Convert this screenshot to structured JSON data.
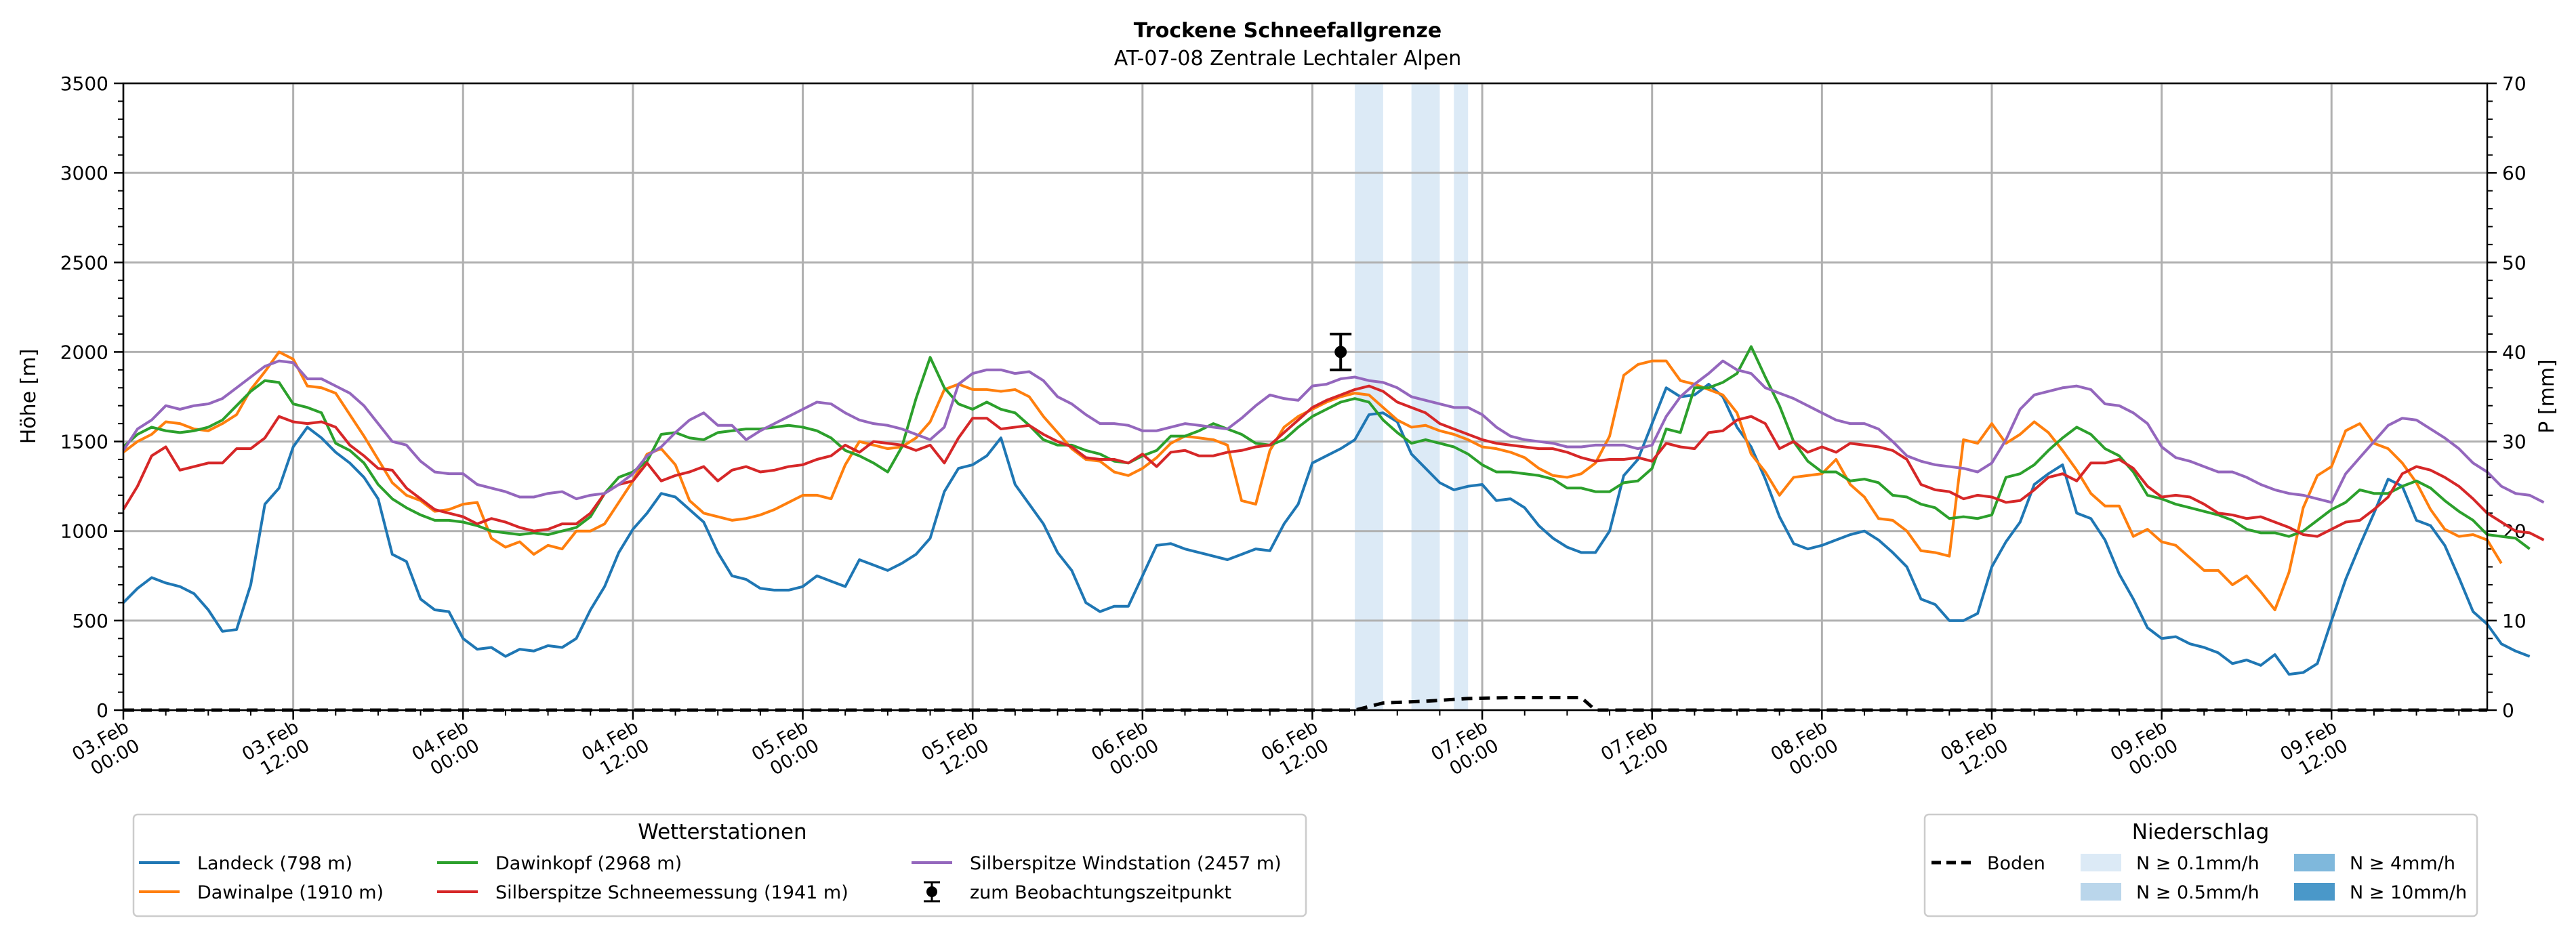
{
  "chart_data": {
    "type": "line",
    "title": "Trockene Schneefallgrenze",
    "subtitle": "AT-07-08 Zentrale Lechtaler Alpen",
    "ylabel": "Höhe [m]",
    "y2label": "P [mm]",
    "ylim": [
      0,
      3500
    ],
    "y2lim": [
      0,
      70
    ],
    "yticks": [
      "0",
      "500",
      "1000",
      "1500",
      "2000",
      "2500",
      "3000",
      "3500"
    ],
    "y2ticks": [
      "0",
      "10",
      "20",
      "30",
      "40",
      "50",
      "60",
      "70"
    ],
    "x_start_hours": 0,
    "x_step_hours": 1,
    "xlim_hours": [
      0,
      167
    ],
    "xticks": [
      {
        "h": 0,
        "l1": "03.Feb",
        "l2": "00:00"
      },
      {
        "h": 12,
        "l1": "03.Feb",
        "l2": "12:00"
      },
      {
        "h": 24,
        "l1": "04.Feb",
        "l2": "00:00"
      },
      {
        "h": 36,
        "l1": "04.Feb",
        "l2": "12:00"
      },
      {
        "h": 48,
        "l1": "05.Feb",
        "l2": "00:00"
      },
      {
        "h": 60,
        "l1": "05.Feb",
        "l2": "12:00"
      },
      {
        "h": 72,
        "l1": "06.Feb",
        "l2": "00:00"
      },
      {
        "h": 84,
        "l1": "06.Feb",
        "l2": "12:00"
      },
      {
        "h": 96,
        "l1": "07.Feb",
        "l2": "00:00"
      },
      {
        "h": 108,
        "l1": "07.Feb",
        "l2": "12:00"
      },
      {
        "h": 120,
        "l1": "08.Feb",
        "l2": "00:00"
      },
      {
        "h": 132,
        "l1": "08.Feb",
        "l2": "12:00"
      },
      {
        "h": 144,
        "l1": "09.Feb",
        "l2": "00:00"
      },
      {
        "h": 156,
        "l1": "09.Feb",
        "l2": "12:00"
      }
    ],
    "series": [
      {
        "name": "Landeck (798 m)",
        "color": "#1f77b4",
        "values": [
          600,
          680,
          740,
          710,
          690,
          650,
          560,
          440,
          450,
          700,
          1150,
          1240,
          1470,
          1580,
          1520,
          1440,
          1380,
          1300,
          1180,
          870,
          830,
          620,
          560,
          550,
          400,
          340,
          350,
          300,
          340,
          330,
          360,
          350,
          400,
          560,
          690,
          880,
          1010,
          1100,
          1210,
          1190,
          1120,
          1050,
          880,
          750,
          730,
          680,
          670,
          670,
          690,
          750,
          720,
          690,
          840,
          810,
          780,
          820,
          870,
          960,
          1220,
          1350,
          1370,
          1420,
          1520,
          1260,
          1150,
          1040,
          880,
          780,
          600,
          550,
          580,
          580,
          750,
          920,
          930,
          900,
          880,
          860,
          840,
          870,
          900,
          890,
          1040,
          1150,
          1380,
          1420,
          1460,
          1510,
          1650,
          1660,
          1610,
          1430,
          1350,
          1270,
          1230,
          1250,
          1260,
          1170,
          1180,
          1130,
          1030,
          960,
          910,
          880,
          880,
          1000,
          1310,
          1400,
          1600,
          1800,
          1750,
          1760,
          1820,
          1750,
          1580,
          1470,
          1290,
          1080,
          930,
          900,
          920,
          950,
          980,
          1000,
          950,
          880,
          800,
          620,
          590,
          500,
          500,
          540,
          800,
          940,
          1050,
          1260,
          1320,
          1370,
          1100,
          1070,
          950,
          760,
          620,
          460,
          400,
          410,
          370,
          350,
          320,
          260,
          280,
          250,
          310,
          200,
          210,
          260,
          500,
          730,
          920,
          1100,
          1290,
          1250,
          1060,
          1030,
          920,
          740,
          550,
          480,
          370,
          330,
          300
        ]
      },
      {
        "name": "Dawinalpe (1910 m)",
        "color": "#ff7f0e",
        "values": [
          1440,
          1500,
          1540,
          1610,
          1600,
          1570,
          1560,
          1600,
          1650,
          1790,
          1890,
          2000,
          1960,
          1810,
          1800,
          1770,
          1650,
          1530,
          1400,
          1270,
          1200,
          1170,
          1110,
          1120,
          1150,
          1160,
          960,
          910,
          940,
          870,
          920,
          900,
          1000,
          1000,
          1040,
          1160,
          1280,
          1430,
          1460,
          1370,
          1170,
          1100,
          1080,
          1060,
          1070,
          1090,
          1120,
          1160,
          1200,
          1200,
          1180,
          1370,
          1500,
          1480,
          1460,
          1470,
          1520,
          1610,
          1790,
          1820,
          1790,
          1790,
          1780,
          1790,
          1750,
          1640,
          1550,
          1460,
          1400,
          1390,
          1330,
          1310,
          1350,
          1410,
          1490,
          1530,
          1520,
          1510,
          1480,
          1170,
          1150,
          1450,
          1580,
          1640,
          1680,
          1720,
          1750,
          1770,
          1760,
          1690,
          1620,
          1580,
          1590,
          1560,
          1540,
          1510,
          1470,
          1460,
          1440,
          1410,
          1350,
          1310,
          1300,
          1320,
          1380,
          1530,
          1870,
          1930,
          1950,
          1950,
          1840,
          1820,
          1790,
          1760,
          1660,
          1430,
          1330,
          1200,
          1300,
          1310,
          1320,
          1400,
          1260,
          1190,
          1070,
          1060,
          1000,
          890,
          880,
          860,
          1510,
          1490,
          1600,
          1490,
          1540,
          1610,
          1550,
          1450,
          1340,
          1210,
          1140,
          1140,
          970,
          1010,
          940,
          920,
          850,
          780,
          780,
          700,
          750,
          660,
          560,
          770,
          1130,
          1310,
          1360,
          1560,
          1600,
          1490,
          1460,
          1380,
          1270,
          1120,
          1010,
          970,
          980,
          950,
          820
        ]
      },
      {
        "name": "Dawinkopf (2968 m)",
        "color": "#2ca02c",
        "values": [
          1470,
          1540,
          1580,
          1560,
          1550,
          1560,
          1580,
          1620,
          1700,
          1780,
          1840,
          1830,
          1710,
          1690,
          1660,
          1490,
          1450,
          1380,
          1260,
          1180,
          1130,
          1090,
          1060,
          1060,
          1050,
          1030,
          1000,
          990,
          980,
          990,
          980,
          1000,
          1020,
          1080,
          1210,
          1300,
          1330,
          1390,
          1540,
          1550,
          1520,
          1510,
          1550,
          1560,
          1570,
          1570,
          1580,
          1590,
          1580,
          1560,
          1520,
          1450,
          1420,
          1380,
          1330,
          1470,
          1740,
          1970,
          1800,
          1710,
          1680,
          1720,
          1680,
          1660,
          1590,
          1510,
          1480,
          1480,
          1450,
          1430,
          1390,
          1380,
          1420,
          1450,
          1530,
          1530,
          1560,
          1600,
          1570,
          1540,
          1490,
          1480,
          1510,
          1580,
          1640,
          1680,
          1720,
          1740,
          1720,
          1620,
          1550,
          1490,
          1510,
          1490,
          1470,
          1430,
          1370,
          1330,
          1330,
          1320,
          1310,
          1290,
          1240,
          1240,
          1220,
          1220,
          1270,
          1280,
          1350,
          1570,
          1550,
          1800,
          1800,
          1830,
          1880,
          2030,
          1860,
          1700,
          1500,
          1390,
          1330,
          1330,
          1280,
          1290,
          1270,
          1200,
          1190,
          1150,
          1130,
          1070,
          1080,
          1070,
          1090,
          1300,
          1320,
          1370,
          1450,
          1520,
          1580,
          1540,
          1460,
          1420,
          1330,
          1200,
          1180,
          1150,
          1130,
          1110,
          1090,
          1060,
          1010,
          990,
          990,
          970,
          1000,
          1060,
          1120,
          1160,
          1230,
          1210,
          1210,
          1250,
          1280,
          1240,
          1170,
          1110,
          1060,
          980,
          970,
          960,
          900
        ]
      },
      {
        "name": "Silberspitze Schneemessung (1941 m)",
        "color": "#d62728",
        "values": [
          1120,
          1250,
          1420,
          1470,
          1340,
          1360,
          1380,
          1380,
          1460,
          1460,
          1520,
          1640,
          1610,
          1600,
          1610,
          1580,
          1480,
          1420,
          1350,
          1340,
          1240,
          1180,
          1120,
          1100,
          1080,
          1040,
          1070,
          1050,
          1020,
          1000,
          1010,
          1040,
          1040,
          1100,
          1210,
          1260,
          1280,
          1380,
          1280,
          1310,
          1330,
          1360,
          1280,
          1340,
          1360,
          1330,
          1340,
          1360,
          1370,
          1400,
          1420,
          1480,
          1440,
          1500,
          1490,
          1480,
          1450,
          1480,
          1380,
          1520,
          1630,
          1630,
          1570,
          1580,
          1590,
          1540,
          1500,
          1470,
          1410,
          1400,
          1400,
          1380,
          1430,
          1360,
          1440,
          1450,
          1420,
          1420,
          1440,
          1450,
          1470,
          1480,
          1550,
          1620,
          1690,
          1730,
          1760,
          1790,
          1810,
          1780,
          1720,
          1690,
          1660,
          1600,
          1570,
          1540,
          1510,
          1490,
          1480,
          1470,
          1460,
          1460,
          1440,
          1410,
          1390,
          1400,
          1400,
          1410,
          1390,
          1490,
          1470,
          1460,
          1550,
          1560,
          1620,
          1640,
          1600,
          1460,
          1500,
          1440,
          1470,
          1440,
          1490,
          1480,
          1470,
          1450,
          1400,
          1260,
          1230,
          1220,
          1180,
          1200,
          1190,
          1160,
          1170,
          1230,
          1300,
          1320,
          1280,
          1380,
          1380,
          1400,
          1350,
          1250,
          1190,
          1200,
          1190,
          1150,
          1100,
          1090,
          1070,
          1080,
          1050,
          1020,
          980,
          970,
          1010,
          1050,
          1060,
          1120,
          1190,
          1320,
          1360,
          1340,
          1300,
          1250,
          1180,
          1100,
          1050,
          1000,
          990,
          950
        ]
      },
      {
        "name": "Silberspitze Windstation (2457 m)",
        "color": "#9467bd",
        "values": [
          1450,
          1570,
          1620,
          1700,
          1680,
          1700,
          1710,
          1740,
          1800,
          1860,
          1920,
          1950,
          1940,
          1850,
          1850,
          1810,
          1770,
          1700,
          1600,
          1500,
          1480,
          1390,
          1330,
          1320,
          1320,
          1260,
          1240,
          1220,
          1190,
          1190,
          1210,
          1220,
          1180,
          1200,
          1210,
          1260,
          1320,
          1420,
          1470,
          1550,
          1620,
          1660,
          1590,
          1590,
          1510,
          1560,
          1600,
          1640,
          1680,
          1720,
          1710,
          1660,
          1620,
          1600,
          1590,
          1570,
          1540,
          1510,
          1580,
          1820,
          1880,
          1900,
          1900,
          1880,
          1890,
          1840,
          1750,
          1710,
          1650,
          1600,
          1600,
          1590,
          1560,
          1560,
          1580,
          1600,
          1590,
          1580,
          1570,
          1630,
          1700,
          1760,
          1740,
          1730,
          1810,
          1820,
          1850,
          1860,
          1840,
          1830,
          1800,
          1750,
          1730,
          1710,
          1690,
          1690,
          1650,
          1580,
          1530,
          1510,
          1500,
          1490,
          1470,
          1470,
          1480,
          1480,
          1480,
          1460,
          1480,
          1640,
          1750,
          1820,
          1880,
          1950,
          1900,
          1880,
          1800,
          1770,
          1740,
          1700,
          1660,
          1620,
          1600,
          1600,
          1570,
          1500,
          1420,
          1390,
          1370,
          1360,
          1350,
          1330,
          1380,
          1510,
          1680,
          1760,
          1780,
          1800,
          1810,
          1790,
          1710,
          1700,
          1660,
          1600,
          1470,
          1410,
          1390,
          1360,
          1330,
          1330,
          1300,
          1260,
          1230,
          1210,
          1200,
          1180,
          1160,
          1320,
          1410,
          1500,
          1590,
          1630,
          1620,
          1570,
          1520,
          1460,
          1380,
          1330,
          1250,
          1210,
          1200,
          1160
        ]
      }
    ],
    "boden": {
      "name": "Boden",
      "values_mm": [
        0,
        0,
        1,
        1,
        1,
        1.5,
        1.5,
        1.5,
        1.5,
        1.5,
        0,
        0
      ]
    },
    "precip_bands": [
      {
        "start_h": 87,
        "end_h": 89
      },
      {
        "start_h": 91,
        "end_h": 93
      },
      {
        "start_h": 94,
        "end_h": 95
      }
    ],
    "boden_points": [
      [
        0,
        0
      ],
      [
        87,
        0
      ],
      [
        89,
        0.8
      ],
      [
        92,
        1.0
      ],
      [
        95,
        1.3
      ],
      [
        98,
        1.4
      ],
      [
        103,
        1.4
      ],
      [
        104,
        0
      ],
      [
        167,
        0
      ]
    ],
    "observation": {
      "h": 86,
      "value": 2000,
      "err_low": 100,
      "err_high": 100
    },
    "legend_stations": {
      "title": "Wetterstationen",
      "observation_label": "zum Beobachtungszeitpunkt"
    },
    "legend_precip": {
      "title": "Niederschlag",
      "boden_label": "Boden",
      "items": [
        {
          "label": "N ≥ 0.1mm/h",
          "color": "#dceaf6"
        },
        {
          "label": "N ≥ 0.5mm/h",
          "color": "#bad6eb"
        },
        {
          "label": "N ≥ 4mm/h",
          "color": "#7fb8dc"
        },
        {
          "label": "N ≥ 10mm/h",
          "color": "#4a98c9"
        }
      ]
    }
  }
}
